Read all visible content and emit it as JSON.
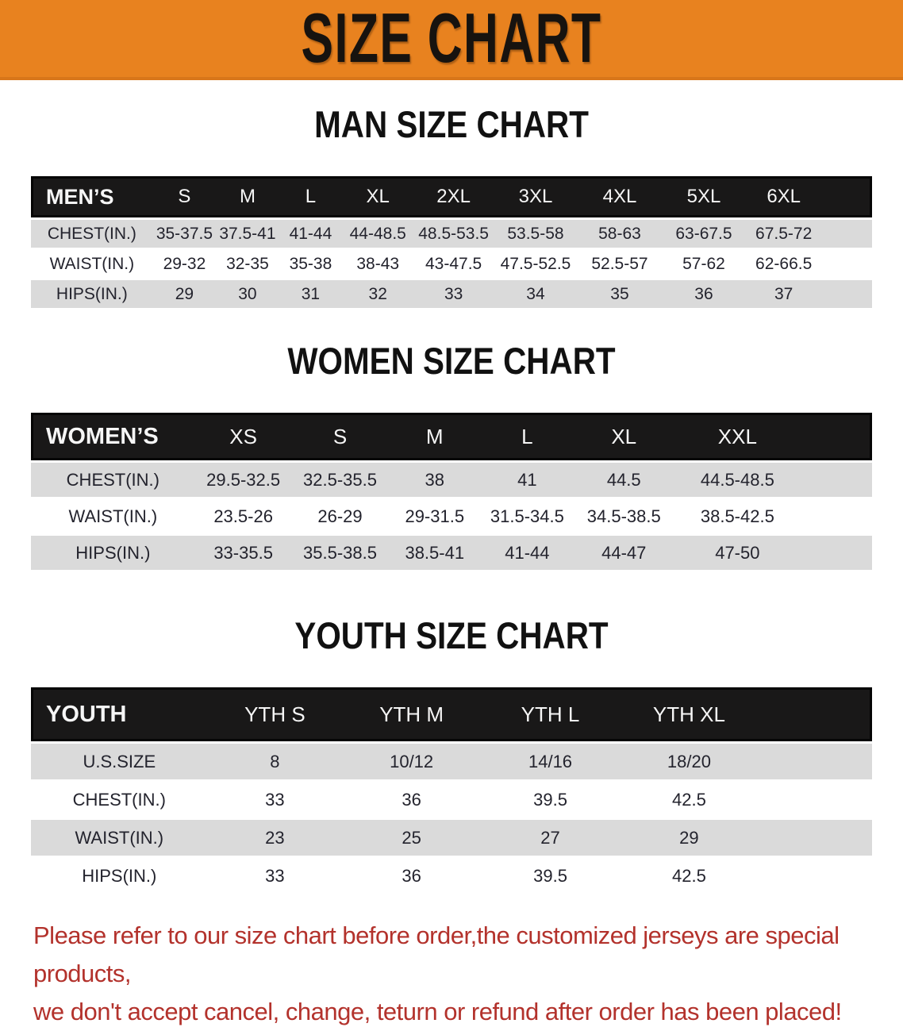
{
  "banner": {
    "title": "SIZE CHART",
    "bg_color": "#E8821F"
  },
  "sections": [
    {
      "id": "men",
      "heading": "MAN SIZE CHART",
      "table": {
        "corner_label": "MEN’S",
        "size_headers": [
          "S",
          "M",
          "L",
          "XL",
          "2XL",
          "3XL",
          "4XL",
          "5XL",
          "6XL"
        ],
        "rows": [
          {
            "label": "CHEST(IN.)",
            "values": [
              "35-37.5",
              "37.5-41",
              "41-44",
              "44-48.5",
              "48.5-53.5",
              "53.5-58",
              "58-63",
              "63-67.5",
              "67.5-72"
            ]
          },
          {
            "label": "WAIST(IN.)",
            "values": [
              "29-32",
              "32-35",
              "35-38",
              "38-43",
              "43-47.5",
              "47.5-52.5",
              "52.5-57",
              "57-62",
              "62-66.5"
            ]
          },
          {
            "label": "HIPS(IN.)",
            "values": [
              "29",
              "30",
              "31",
              "32",
              "33",
              "34",
              "35",
              "36",
              "37"
            ]
          }
        ],
        "col_widths": [
          "14.5%",
          "7.5%",
          "7.5%",
          "7.5%",
          "8.5%",
          "9.5%",
          "10%",
          "10%",
          "10%",
          "9%",
          "6%"
        ]
      }
    },
    {
      "id": "women",
      "heading": "WOMEN SIZE CHART",
      "table": {
        "corner_label": "WOMEN’S",
        "size_headers": [
          "XS",
          "S",
          "M",
          "L",
          "XL",
          "XXL"
        ],
        "rows": [
          {
            "label": "CHEST(IN.)",
            "values": [
              "29.5-32.5",
              "32.5-35.5",
              "38",
              "41",
              "44.5",
              "44.5-48.5"
            ]
          },
          {
            "label": "WAIST(IN.)",
            "values": [
              "23.5-26",
              "26-29",
              "29-31.5",
              "31.5-34.5",
              "34.5-38.5",
              "38.5-42.5"
            ]
          },
          {
            "label": "HIPS(IN.)",
            "values": [
              "33-35.5",
              "35.5-38.5",
              "38.5-41",
              "41-44",
              "44-47",
              "47-50"
            ]
          }
        ],
        "col_widths": [
          "19.5%",
          "11.5%",
          "11.5%",
          "11%",
          "11%",
          "12%",
          "15%",
          "8.5%"
        ]
      }
    },
    {
      "id": "youth",
      "heading": "YOUTH SIZE CHART",
      "table": {
        "corner_label": "YOUTH",
        "size_headers": [
          "YTH S",
          "YTH M",
          "YTH L",
          "YTH XL"
        ],
        "rows": [
          {
            "label": "U.S.SIZE",
            "values": [
              "8",
              "10/12",
              "14/16",
              "18/20"
            ]
          },
          {
            "label": "CHEST(IN.)",
            "values": [
              "33",
              "36",
              "39.5",
              "42.5"
            ]
          },
          {
            "label": "WAIST(IN.)",
            "values": [
              "23",
              "25",
              "27",
              "29"
            ]
          },
          {
            "label": "HIPS(IN.)",
            "values": [
              "33",
              "36",
              "39.5",
              "42.5"
            ]
          }
        ],
        "col_widths": [
          "21%",
          "16%",
          "16.5%",
          "16.5%",
          "16.5%",
          "13.5%"
        ]
      }
    }
  ],
  "footer": {
    "lines": [
      "Please refer to our size chart before order,the customized jerseys are special products,",
      "we don't accept cancel, change, teturn or refund after order has been placed!"
    ],
    "color": "#B3322C"
  },
  "colors": {
    "banner_bg": "#E8821F",
    "table_header_bg": "#191818",
    "row_gray": "#DADADA",
    "footer_red": "#B3322C"
  }
}
